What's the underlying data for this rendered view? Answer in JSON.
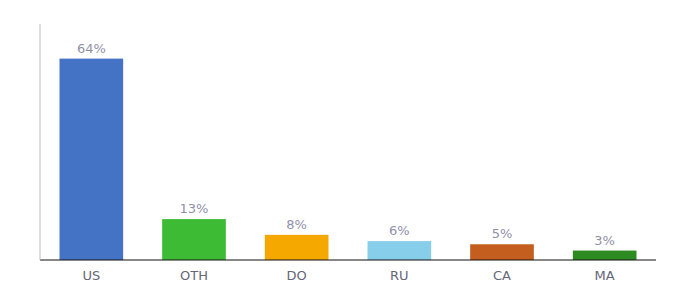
{
  "chart_data": {
    "type": "bar",
    "categories": [
      "US",
      "OTH",
      "DO",
      "RU",
      "CA",
      "MA"
    ],
    "values": [
      64,
      13,
      8,
      6,
      5,
      3
    ],
    "value_labels": [
      "64%",
      "13%",
      "8%",
      "6%",
      "5%",
      "3%"
    ],
    "colors": [
      "#4472c4",
      "#3dbb35",
      "#f5a800",
      "#87ceeb",
      "#c45e1e",
      "#2e8b22"
    ],
    "ylim": [
      0,
      75
    ],
    "yticks": [],
    "data_labels": true,
    "tick_labels": "x"
  }
}
